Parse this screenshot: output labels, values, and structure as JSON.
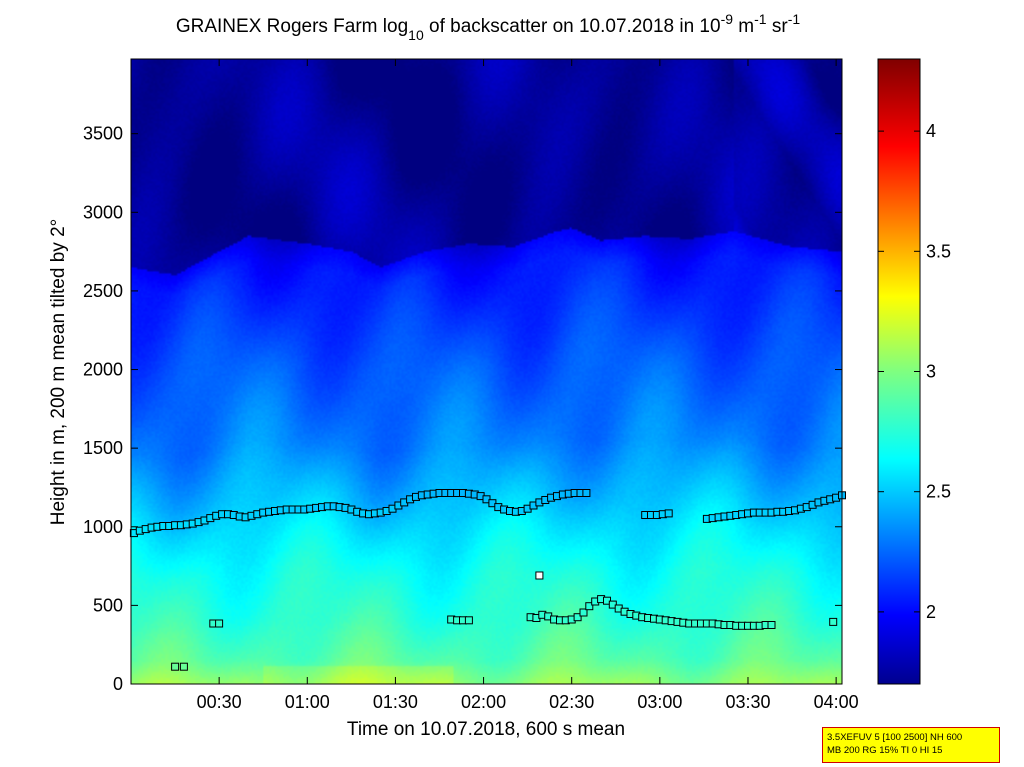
{
  "chart_data": {
    "type": "heatmap",
    "title": {
      "prefix": "GRAINEX Rogers Farm log",
      "sub": "10",
      "middle": " of backscatter on 10.07.2018 in 10",
      "exp1": "-9",
      "unit1": " m",
      "exp2": "-1",
      "unit2": " sr",
      "exp3": "-1"
    },
    "xlabel": "Time on 10.07.2018, 600 s mean",
    "ylabel": "Height in m, 200 m mean tilted by 2°",
    "x_unit": "minutes after 00:00",
    "xlim": [
      0,
      242
    ],
    "ylim": [
      0,
      3975
    ],
    "x_ticks": [
      {
        "value": 30,
        "label": "00:30"
      },
      {
        "value": 60,
        "label": "01:00"
      },
      {
        "value": 90,
        "label": "01:30"
      },
      {
        "value": 120,
        "label": "02:00"
      },
      {
        "value": 150,
        "label": "02:30"
      },
      {
        "value": 180,
        "label": "03:00"
      },
      {
        "value": 210,
        "label": "03:30"
      },
      {
        "value": 240,
        "label": "04:00"
      }
    ],
    "y_ticks": [
      {
        "value": 0,
        "label": "0"
      },
      {
        "value": 500,
        "label": "500"
      },
      {
        "value": 1000,
        "label": "1000"
      },
      {
        "value": 1500,
        "label": "1500"
      },
      {
        "value": 2000,
        "label": "2000"
      },
      {
        "value": 2500,
        "label": "2500"
      },
      {
        "value": 3000,
        "label": "3000"
      },
      {
        "value": 3500,
        "label": "3500"
      }
    ],
    "colorbar": {
      "colormap": "jet",
      "range": [
        1.7,
        4.3
      ],
      "ticks": [
        {
          "value": 2,
          "label": "2"
        },
        {
          "value": 2.5,
          "label": "2.5"
        },
        {
          "value": 3,
          "label": "3"
        },
        {
          "value": 3.5,
          "label": "3.5"
        },
        {
          "value": 4,
          "label": "4"
        }
      ]
    },
    "field_profile": {
      "description": "approximate log10 backscatter value at height (m)",
      "heights": [
        0,
        150,
        400,
        700,
        950,
        1150,
        1500,
        2000,
        2600,
        3000,
        3975
      ],
      "values": [
        3.05,
        2.9,
        2.8,
        2.72,
        2.62,
        2.52,
        2.36,
        2.25,
        2.08,
        1.78,
        1.74
      ]
    },
    "cloud_top_curve": {
      "times": [
        0,
        15,
        25,
        40,
        60,
        75,
        85,
        100,
        115,
        130,
        145,
        150,
        160,
        175,
        190,
        205,
        225,
        242
      ],
      "heights": [
        2650,
        2600,
        2700,
        2850,
        2800,
        2750,
        2650,
        2750,
        2800,
        2780,
        2880,
        2900,
        2820,
        2850,
        2830,
        2880,
        2780,
        2750
      ]
    },
    "series": [
      {
        "marker": "square",
        "points": [
          [
            1,
            960
          ],
          [
            3,
            975
          ],
          [
            5,
            985
          ],
          [
            7,
            995
          ],
          [
            9,
            1000
          ],
          [
            11,
            1005
          ],
          [
            13,
            1005
          ],
          [
            15,
            1010
          ],
          [
            17,
            1010
          ],
          [
            19,
            1015
          ],
          [
            21,
            1020
          ],
          [
            23,
            1030
          ],
          [
            25,
            1040
          ],
          [
            27,
            1055
          ],
          [
            29,
            1070
          ],
          [
            31,
            1080
          ],
          [
            33,
            1080
          ],
          [
            35,
            1075
          ],
          [
            37,
            1065
          ],
          [
            39,
            1060
          ],
          [
            41,
            1070
          ],
          [
            43,
            1080
          ],
          [
            45,
            1090
          ],
          [
            47,
            1095
          ],
          [
            49,
            1100
          ],
          [
            51,
            1105
          ],
          [
            53,
            1110
          ],
          [
            55,
            1110
          ],
          [
            57,
            1110
          ],
          [
            59,
            1110
          ],
          [
            61,
            1115
          ],
          [
            63,
            1120
          ],
          [
            65,
            1125
          ],
          [
            67,
            1130
          ],
          [
            69,
            1130
          ],
          [
            71,
            1125
          ],
          [
            73,
            1120
          ],
          [
            75,
            1110
          ],
          [
            77,
            1095
          ],
          [
            79,
            1085
          ],
          [
            81,
            1080
          ],
          [
            83,
            1085
          ],
          [
            85,
            1090
          ],
          [
            87,
            1100
          ],
          [
            89,
            1115
          ],
          [
            91,
            1135
          ],
          [
            93,
            1155
          ],
          [
            95,
            1175
          ],
          [
            97,
            1190
          ],
          [
            99,
            1200
          ],
          [
            101,
            1205
          ],
          [
            103,
            1210
          ],
          [
            105,
            1215
          ],
          [
            107,
            1215
          ],
          [
            109,
            1215
          ],
          [
            111,
            1215
          ],
          [
            113,
            1215
          ],
          [
            115,
            1210
          ],
          [
            117,
            1205
          ],
          [
            119,
            1195
          ],
          [
            121,
            1175
          ],
          [
            123,
            1150
          ],
          [
            125,
            1125
          ],
          [
            127,
            1110
          ],
          [
            129,
            1100
          ],
          [
            131,
            1095
          ],
          [
            133,
            1100
          ],
          [
            135,
            1115
          ],
          [
            137,
            1135
          ],
          [
            139,
            1155
          ],
          [
            141,
            1170
          ],
          [
            143,
            1185
          ],
          [
            145,
            1195
          ],
          [
            147,
            1205
          ],
          [
            149,
            1210
          ],
          [
            151,
            1215
          ],
          [
            153,
            1215
          ],
          [
            155,
            1215
          ],
          [
            175,
            1075
          ],
          [
            177,
            1075
          ],
          [
            179,
            1075
          ],
          [
            181,
            1080
          ],
          [
            183,
            1085
          ],
          [
            196,
            1050
          ],
          [
            198,
            1055
          ],
          [
            200,
            1060
          ],
          [
            202,
            1065
          ],
          [
            204,
            1070
          ],
          [
            206,
            1075
          ],
          [
            208,
            1080
          ],
          [
            210,
            1085
          ],
          [
            212,
            1090
          ],
          [
            214,
            1090
          ],
          [
            216,
            1090
          ],
          [
            218,
            1090
          ],
          [
            220,
            1095
          ],
          [
            222,
            1095
          ],
          [
            224,
            1100
          ],
          [
            226,
            1105
          ],
          [
            228,
            1115
          ],
          [
            230,
            1125
          ],
          [
            232,
            1140
          ],
          [
            234,
            1155
          ],
          [
            236,
            1165
          ],
          [
            238,
            1175
          ],
          [
            240,
            1185
          ],
          [
            242,
            1200
          ]
        ]
      },
      {
        "marker": "square",
        "points": [
          [
            15,
            110
          ],
          [
            18,
            110
          ],
          [
            28,
            385
          ],
          [
            30,
            385
          ],
          [
            109,
            410
          ],
          [
            111,
            405
          ],
          [
            113,
            405
          ],
          [
            115,
            405
          ],
          [
            136,
            425
          ],
          [
            138,
            420
          ],
          [
            140,
            440
          ],
          [
            142,
            430
          ],
          [
            144,
            410
          ],
          [
            146,
            405
          ],
          [
            148,
            405
          ],
          [
            150,
            410
          ],
          [
            152,
            425
          ],
          [
            154,
            455
          ],
          [
            156,
            495
          ],
          [
            158,
            525
          ],
          [
            160,
            540
          ],
          [
            162,
            530
          ],
          [
            164,
            505
          ],
          [
            166,
            480
          ],
          [
            168,
            460
          ],
          [
            170,
            445
          ],
          [
            172,
            435
          ],
          [
            174,
            425
          ],
          [
            176,
            420
          ],
          [
            178,
            415
          ],
          [
            180,
            410
          ],
          [
            182,
            405
          ],
          [
            184,
            400
          ],
          [
            186,
            395
          ],
          [
            188,
            390
          ],
          [
            190,
            385
          ],
          [
            192,
            385
          ],
          [
            194,
            385
          ],
          [
            196,
            385
          ],
          [
            198,
            385
          ],
          [
            200,
            380
          ],
          [
            202,
            375
          ],
          [
            204,
            375
          ],
          [
            206,
            370
          ],
          [
            208,
            370
          ],
          [
            210,
            370
          ],
          [
            212,
            370
          ],
          [
            214,
            370
          ],
          [
            216,
            375
          ],
          [
            218,
            375
          ],
          [
            239,
            395
          ],
          [
            139,
            690
          ]
        ]
      }
    ]
  },
  "info_box": {
    "line1": "3.5XEFUV 5 [100 2500] NH 600",
    "line2": "MB 200 RG 15% TI 0 HI 15"
  }
}
